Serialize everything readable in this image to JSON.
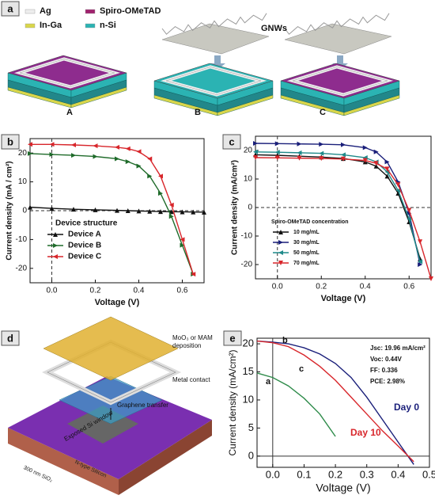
{
  "panels": {
    "a": "a",
    "b": "b",
    "c": "c",
    "d": "d",
    "e": "e"
  },
  "diagram_a": {
    "legend": [
      "Ag",
      "Spiro-OMeTAD",
      "In-Ga",
      "n-Si"
    ],
    "gnw": "GNWs",
    "devices": [
      "A",
      "B",
      "C"
    ]
  },
  "diagram_d": {
    "labels": [
      "MoO₃ or MAM deposition",
      "Metal contact",
      "Graphene transfer",
      "Exposed Si window",
      "300 nm SiO₂",
      "N-type Silicon"
    ]
  },
  "chart_data": [
    {
      "type": "line",
      "x_label": "Voltage (V)",
      "y_label": "Current density (mA / cm²)",
      "origin_lines": "dashed",
      "legend_title": "Device structure",
      "markers": true,
      "xlim": [
        -0.1,
        0.7
      ],
      "xticks": [
        {
          "value": 0,
          "label": "0.0"
        },
        0.2,
        0.4,
        0.6
      ],
      "ylim": [
        -25,
        25
      ],
      "yticks": [
        -20,
        -10,
        0,
        10,
        20
      ],
      "x": [
        -0.1,
        0,
        0.1,
        0.2,
        0.3,
        0.35,
        0.4,
        0.45,
        0.5,
        0.55,
        0.6,
        0.65,
        0.7
      ],
      "series": [
        {
          "name": "Device A",
          "color": "#111111",
          "values": [
            1.2,
            0.8,
            0.5,
            0.3,
            0.1,
            0,
            -0.1,
            -0.2,
            -0.3,
            -0.35,
            -0.4,
            -0.45,
            -0.5
          ]
        },
        {
          "name": "Device B",
          "color": "#1f6b2a",
          "values": [
            19.8,
            19.5,
            19.2,
            18.8,
            18,
            17,
            15.5,
            12,
            6,
            -2,
            -12,
            -22,
            null
          ]
        },
        {
          "name": "Device C",
          "color": "#d8262b",
          "values": [
            23,
            23,
            22.8,
            22.5,
            22,
            21.5,
            20.5,
            18,
            12,
            2,
            -10,
            -22,
            null
          ]
        }
      ]
    },
    {
      "type": "line",
      "x_label": "Voltage (V)",
      "y_label": "Current density (mA/cm²)",
      "origin_lines": "dashed",
      "legend_title": "Spiro-OMeTAD concentration",
      "markers": true,
      "xlim": [
        -0.1,
        0.7
      ],
      "xticks": [
        {
          "value": 0,
          "label": "0.0"
        },
        0.2,
        0.4,
        0.6
      ],
      "ylim": [
        -25,
        25
      ],
      "yticks": [
        -20,
        -10,
        0,
        10,
        20
      ],
      "x": [
        -0.1,
        0,
        0.1,
        0.2,
        0.3,
        0.4,
        0.45,
        0.5,
        0.55,
        0.6,
        0.65,
        0.7
      ],
      "series": [
        {
          "name": "10 mg/mL",
          "color": "#111111",
          "values": [
            18.5,
            18.3,
            18,
            17.7,
            17.2,
            16,
            14.5,
            11,
            5,
            -5,
            -18,
            null
          ]
        },
        {
          "name": "30 mg/mL",
          "color": "#1a1f7a",
          "values": [
            22.5,
            22.4,
            22.3,
            22.2,
            22,
            21,
            19.5,
            16,
            9,
            -2,
            -20,
            null
          ]
        },
        {
          "name": "50 mg/mL",
          "color": "#1f8a8a",
          "values": [
            19.5,
            19.4,
            19.2,
            19,
            18.5,
            17.5,
            16,
            12.5,
            6,
            -4,
            -19,
            null
          ]
        },
        {
          "name": "70 mg/mL",
          "color": "#d8262b",
          "values": [
            17.5,
            17.4,
            17.3,
            17.2,
            17,
            16.5,
            15.5,
            13.5,
            8,
            -1,
            -12,
            -25
          ]
        }
      ]
    },
    {
      "type": "line",
      "x_label": "Voltage (V)",
      "y_label": "Current density (mA/cm²)",
      "origin_lines": "solid",
      "markers": false,
      "xlim": [
        -0.05,
        0.5
      ],
      "xticks": [
        {
          "value": 0,
          "label": "0.0"
        },
        0.1,
        0.2,
        0.3,
        0.4,
        0.5
      ],
      "ylim": [
        -2,
        21
      ],
      "yticks": [
        0,
        5,
        10,
        15,
        20
      ],
      "x": [
        -0.05,
        0,
        0.05,
        0.1,
        0.15,
        0.2,
        0.25,
        0.3,
        0.35,
        0.4,
        0.45,
        0.5
      ],
      "series": [
        {
          "color": "#2e8b4a",
          "values": [
            14.8,
            14,
            12.5,
            10.3,
            7.5,
            3.5,
            null,
            null,
            null,
            null,
            null,
            null
          ]
        },
        {
          "color": "#1a1f7a",
          "values": [
            20.5,
            20.3,
            20,
            19.3,
            18.2,
            16.5,
            14,
            10.5,
            6.5,
            2.5,
            -1.5,
            null
          ]
        },
        {
          "color": "#d8262b",
          "values": [
            20.5,
            20.2,
            19.5,
            18,
            16,
            13.5,
            10.5,
            7.5,
            4.5,
            1.8,
            -1,
            null
          ]
        }
      ],
      "annotations": [
        {
          "text": "Jsc: 19.96 mA/cm²",
          "color": "#111"
        },
        {
          "text": "Voc: 0.44V",
          "color": "#111"
        },
        {
          "text": "FF: 0.336",
          "color": "#111"
        },
        {
          "text": "PCE: 2.98%",
          "color": "#111"
        },
        {
          "text": "a",
          "color": "#111"
        },
        {
          "text": "b",
          "color": "#111"
        },
        {
          "text": "c",
          "color": "#111"
        },
        {
          "text": "Day 0",
          "color": "#1a1f7a"
        },
        {
          "text": "Day 10",
          "color": "#d8262b"
        }
      ]
    }
  ]
}
